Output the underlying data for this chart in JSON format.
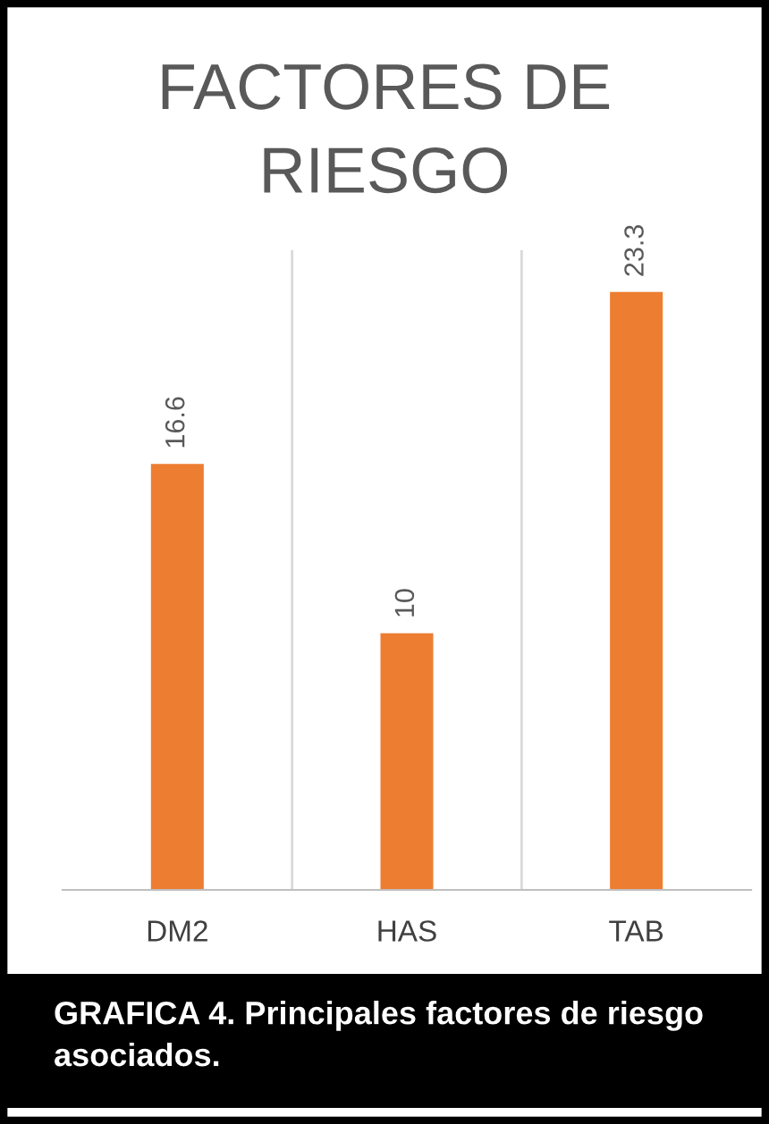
{
  "chart_data": {
    "type": "bar",
    "title": "FACTORES DE\nRIESGO",
    "categories": [
      "DM2",
      "HAS",
      "TAB"
    ],
    "values": [
      16.6,
      10,
      23.3
    ],
    "color": "#ed7d31",
    "data_labels": true,
    "grid": "x",
    "annotations": [
      "GRAFICA 4. Principales factores de riesgo asociados."
    ]
  }
}
